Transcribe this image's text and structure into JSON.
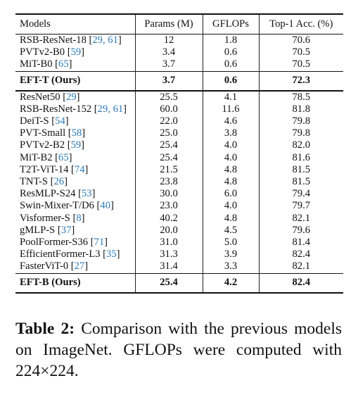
{
  "table": {
    "headers": [
      "Models",
      "Params (M)",
      "GFLOPs",
      "Top-1 Acc. (%)"
    ],
    "group1": [
      {
        "name": "RSB-ResNet-18",
        "refs": "29, 61",
        "params": "12",
        "gflops": "1.8",
        "acc": "70.6"
      },
      {
        "name": "PVTv2-B0",
        "refs": "59",
        "params": "3.4",
        "gflops": "0.6",
        "acc": "70.5"
      },
      {
        "name": "MiT-B0",
        "refs": "65",
        "params": "3.7",
        "gflops": "0.6",
        "acc": "70.5"
      }
    ],
    "ours_t": {
      "name": "EFT-T (Ours)",
      "params": "3.7",
      "gflops": "0.6",
      "acc": "72.3"
    },
    "group2": [
      {
        "name": "ResNet50",
        "refs": "29",
        "params": "25.5",
        "gflops": "4.1",
        "acc": "78.5"
      },
      {
        "name": "RSB-ResNet-152",
        "refs": "29, 61",
        "params": "60.0",
        "gflops": "11.6",
        "acc": "81.8"
      },
      {
        "name": "DeiT-S",
        "refs": "54",
        "params": "22.0",
        "gflops": "4.6",
        "acc": "79.8"
      },
      {
        "name": "PVT-Small",
        "refs": "58",
        "params": "25.0",
        "gflops": "3.8",
        "acc": "79.8"
      },
      {
        "name": "PVTv2-B2",
        "refs": "59",
        "params": "25.4",
        "gflops": "4.0",
        "acc": "82.0"
      },
      {
        "name": "MiT-B2",
        "refs": "65",
        "params": "25.4",
        "gflops": "4.0",
        "acc": "81.6"
      },
      {
        "name": "T2T-ViT-14",
        "refs": "74",
        "params": "21.5",
        "gflops": "4.8",
        "acc": "81.5"
      },
      {
        "name": "TNT-S",
        "refs": "26",
        "params": "23.8",
        "gflops": "4.8",
        "acc": "81.5"
      },
      {
        "name": "ResMLP-S24",
        "refs": "53",
        "params": "30.0",
        "gflops": "6.0",
        "acc": "79.4"
      },
      {
        "name": "Swin-Mixer-T/D6",
        "refs": "40",
        "params": "23.0",
        "gflops": "4.0",
        "acc": "79.7"
      },
      {
        "name": "Visformer-S",
        "refs": "8",
        "params": "40.2",
        "gflops": "4.8",
        "acc": "82.1"
      },
      {
        "name": "gMLP-S",
        "refs": "37",
        "params": "20.0",
        "gflops": "4.5",
        "acc": "79.6"
      },
      {
        "name": "PoolFormer-S36",
        "refs": "71",
        "params": "31.0",
        "gflops": "5.0",
        "acc": "81.4"
      },
      {
        "name": "EfficientFormer-L3",
        "refs": "35",
        "params": "31.3",
        "gflops": "3.9",
        "acc": "82.4"
      },
      {
        "name": "FasterViT-0",
        "refs": "27",
        "params": "31.4",
        "gflops": "3.3",
        "acc": "82.1"
      }
    ],
    "ours_b": {
      "name": "EFT-B (Ours)",
      "params": "25.4",
      "gflops": "4.2",
      "acc": "82.4"
    }
  },
  "caption": {
    "label": "Table 2:",
    "text": "Comparison with the previous models on ImageNet. GFLOPs were computed with 224×224."
  }
}
